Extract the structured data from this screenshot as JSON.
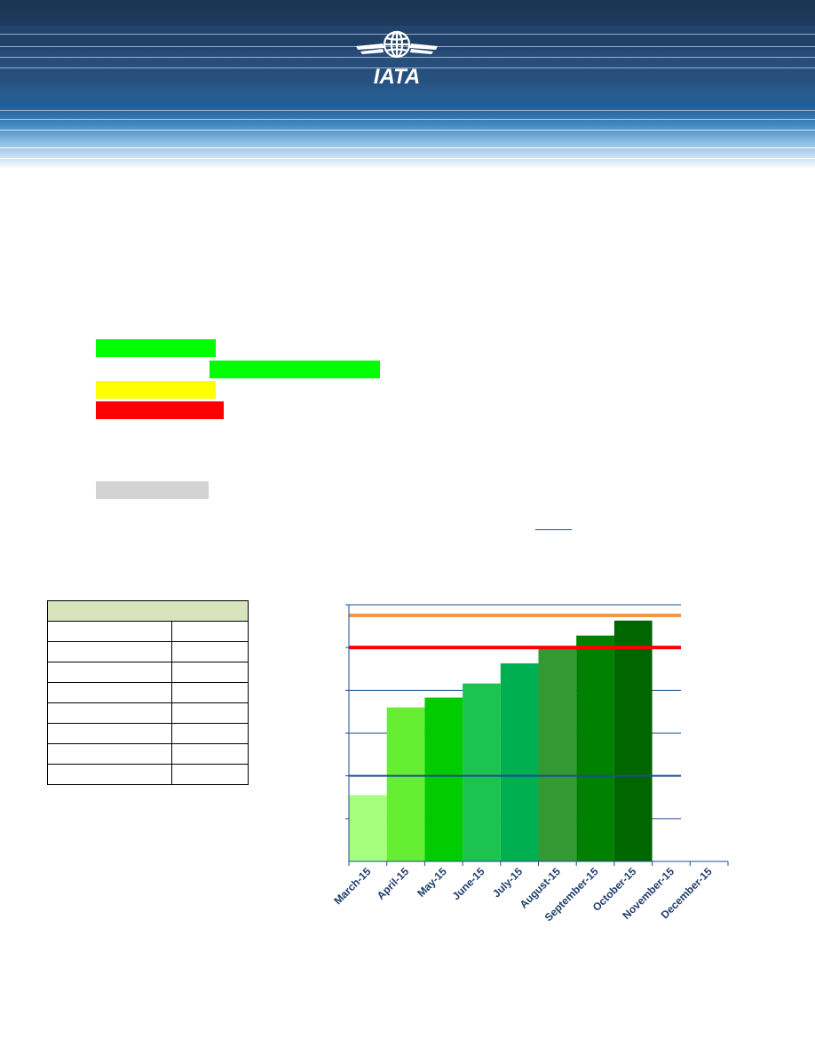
{
  "header": {
    "logo_text": "IATA",
    "colors": {
      "band_dark": "#1d3a5e",
      "band_light": "#8dbde0",
      "logo": "#ffffff"
    }
  },
  "legend_blocks": [
    {
      "name": "legend-green-1",
      "color": "#00ff00"
    },
    {
      "name": "legend-green-2",
      "color": "#00ff00"
    },
    {
      "name": "legend-yellow",
      "color": "#ffff00"
    },
    {
      "name": "legend-red",
      "color": "#ff0000"
    },
    {
      "name": "legend-grey",
      "color": "#d3d3d3"
    }
  ],
  "summary_table": {
    "header_color": "#d8e4bc",
    "rows": 8
  },
  "chart_data": {
    "type": "bar",
    "categories": [
      "March-15",
      "April-15",
      "May-15",
      "June-15",
      "July-15",
      "August-15",
      "September-15",
      "October-15",
      "November-15",
      "December-15"
    ],
    "values": [
      15.5,
      36,
      38.3,
      41.6,
      46.3,
      50,
      52.8,
      56.3,
      null,
      null
    ],
    "bar_colors": [
      "#a6ff7c",
      "#66ee33",
      "#00cc00",
      "#1cc44f",
      "#00b050",
      "#339933",
      "#008000",
      "#006600"
    ],
    "ylim": [
      0,
      60
    ],
    "y_gridlines": [
      10,
      20,
      30,
      40,
      50,
      60
    ],
    "reference_lines": [
      {
        "value": 57.5,
        "color": "#f79646"
      },
      {
        "value": 50,
        "color": "#ff0000"
      },
      {
        "value": 20,
        "color": "#1f4e8c"
      }
    ],
    "title": "",
    "xlabel": "",
    "ylabel": "",
    "grid": true,
    "legend": "none"
  }
}
